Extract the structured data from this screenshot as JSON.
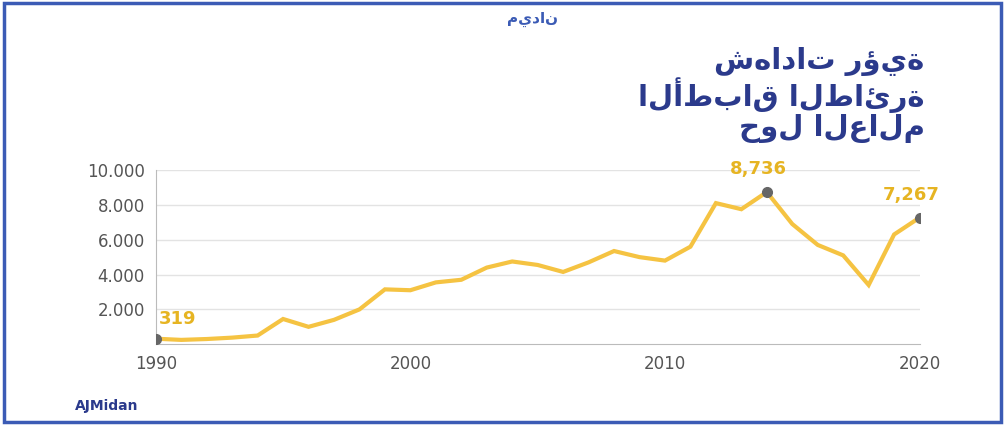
{
  "chart_data": {
    "type": "line",
    "title": "شهادات رؤية\nالأطباق الطائرة\nحول العالم",
    "brand": "ميدان",
    "source": "AJMidan",
    "x": [
      1990,
      1991,
      1992,
      1993,
      1994,
      1995,
      1996,
      1997,
      1998,
      1999,
      2000,
      2001,
      2002,
      2003,
      2004,
      2005,
      2006,
      2007,
      2008,
      2009,
      2010,
      2011,
      2012,
      2013,
      2014,
      2015,
      2016,
      2017,
      2018,
      2019,
      2020
    ],
    "values": [
      319,
      250,
      300,
      380,
      500,
      1450,
      1000,
      1400,
      2000,
      3150,
      3100,
      3550,
      3700,
      4400,
      4750,
      4550,
      4150,
      4700,
      5350,
      5000,
      4800,
      5600,
      8100,
      7750,
      8736,
      6900,
      5700,
      5100,
      3400,
      6300,
      7267
    ],
    "color": "#f5c342",
    "annotations": [
      {
        "x": 1990,
        "value": 319,
        "label": "319"
      },
      {
        "x": 2014,
        "value": 8736,
        "label": "8,736"
      },
      {
        "x": 2020,
        "value": 7267,
        "label": "7,267"
      }
    ],
    "xlim": [
      1990,
      2020
    ],
    "xticks": [
      1990,
      2000,
      2010,
      2020
    ],
    "ylim": [
      0,
      10000
    ],
    "yticks": [
      {
        "value": 2000,
        "label": "2.000"
      },
      {
        "value": 4000,
        "label": "4.000"
      },
      {
        "value": 6000,
        "label": "6.000"
      },
      {
        "value": 8000,
        "label": "8.000"
      },
      {
        "value": 10000,
        "label": "10.000"
      }
    ],
    "grid": true
  }
}
